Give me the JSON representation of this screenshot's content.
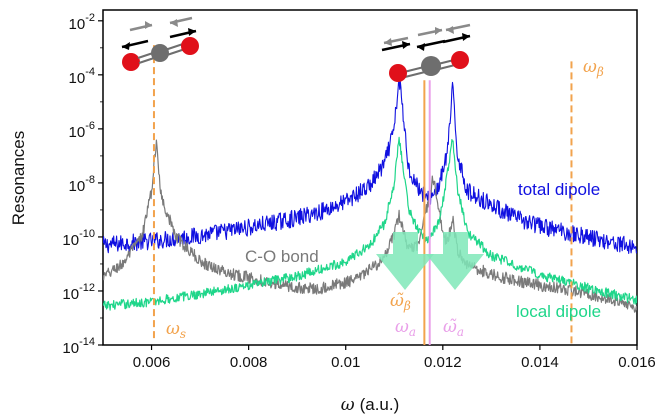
{
  "chart_data": {
    "type": "line",
    "title": "",
    "xlabel_symbol": "ω",
    "xlabel_unit": "(a.u.)",
    "ylabel": "Resonances",
    "yscale": "log",
    "xlim": [
      0.005,
      0.016
    ],
    "ylim_exp": [
      -14,
      -1.6
    ],
    "x_ticks": [
      {
        "value": 0.006,
        "label": "0.006"
      },
      {
        "value": 0.008,
        "label": "0.008"
      },
      {
        "value": 0.01,
        "label": "0.01"
      },
      {
        "value": 0.012,
        "label": "0.012"
      },
      {
        "value": 0.014,
        "label": "0.014"
      },
      {
        "value": 0.016,
        "label": "0.016"
      }
    ],
    "y_ticks": [
      {
        "exp": -2,
        "base": "10",
        "sup": "-2"
      },
      {
        "exp": -4,
        "base": "10",
        "sup": "-4"
      },
      {
        "exp": -6,
        "base": "10",
        "sup": "-6"
      },
      {
        "exp": -8,
        "base": "10",
        "sup": "-8"
      },
      {
        "exp": -10,
        "base": "10",
        "sup": "-10"
      },
      {
        "exp": -12,
        "base": "10",
        "sup": "-12"
      },
      {
        "exp": -14,
        "base": "10",
        "sup": "-14"
      }
    ],
    "series": [
      {
        "name": "total dipole",
        "color": "#1010e0",
        "noise": 0.32,
        "x": [
          0.005,
          0.006,
          0.007,
          0.008,
          0.009,
          0.0095,
          0.01,
          0.0105,
          0.0108,
          0.011,
          0.0111,
          0.0113,
          0.0115,
          0.0117,
          0.0119,
          0.012,
          0.0121,
          0.0122,
          0.0123,
          0.0125,
          0.013,
          0.0135,
          0.014,
          0.015,
          0.016
        ],
        "y_exp": [
          -10.3,
          -10.15,
          -9.95,
          -9.65,
          -9.3,
          -9.05,
          -8.7,
          -8.1,
          -7.3,
          -6.0,
          -4.1,
          -7.5,
          -8.2,
          -8.6,
          -8.2,
          -7.6,
          -6.8,
          -4.5,
          -6.9,
          -8.3,
          -8.8,
          -9.3,
          -9.6,
          -10.0,
          -10.4
        ]
      },
      {
        "name": "C-O bond",
        "color": "#7a7a7a",
        "noise": 0.22,
        "x": [
          0.005,
          0.0054,
          0.0058,
          0.006,
          0.0061,
          0.0062,
          0.0065,
          0.007,
          0.0075,
          0.008,
          0.009,
          0.0095,
          0.0102,
          0.0108,
          0.011,
          0.0111,
          0.0113,
          0.0115,
          0.0117,
          0.0118,
          0.0119,
          0.012,
          0.0121,
          0.0122,
          0.0123,
          0.0125,
          0.013,
          0.014,
          0.015,
          0.016
        ],
        "y_exp": [
          -11.5,
          -11.0,
          -10.0,
          -8.3,
          -6.5,
          -8.5,
          -10.0,
          -10.9,
          -11.3,
          -11.5,
          -11.9,
          -11.9,
          -11.6,
          -10.8,
          -9.9,
          -9.2,
          -10.5,
          -10.3,
          -8.7,
          -7.8,
          -8.8,
          -9.9,
          -10.2,
          -9.3,
          -10.5,
          -11.0,
          -11.4,
          -11.8,
          -12.1,
          -12.6
        ]
      },
      {
        "name": "local dipole",
        "color": "#1fd68a",
        "noise": 0.18,
        "x": [
          0.005,
          0.006,
          0.007,
          0.008,
          0.009,
          0.0095,
          0.01,
          0.0105,
          0.0108,
          0.011,
          0.0111,
          0.0113,
          0.0115,
          0.0117,
          0.0119,
          0.012,
          0.0121,
          0.0122,
          0.0123,
          0.0125,
          0.013,
          0.014,
          0.015,
          0.016
        ],
        "y_exp": [
          -12.55,
          -12.4,
          -12.1,
          -11.8,
          -11.45,
          -11.2,
          -10.9,
          -10.3,
          -9.5,
          -8.0,
          -6.3,
          -9.0,
          -9.8,
          -10.1,
          -9.5,
          -8.7,
          -7.6,
          -6.4,
          -8.2,
          -9.8,
          -10.7,
          -11.4,
          -11.9,
          -12.35
        ]
      }
    ],
    "reference_lines": [
      {
        "name": "omega-s",
        "x": 0.00605,
        "color": "#f2a34d",
        "style": "dashed"
      },
      {
        "name": "omega-beta-tilde",
        "x": 0.01162,
        "color": "#f2a34d",
        "style": "solid"
      },
      {
        "name": "omega-a",
        "x": 0.01173,
        "color": "#e9a0e9",
        "style": "solid"
      },
      {
        "name": "omega-beta",
        "x": 0.01465,
        "color": "#f2a34d",
        "style": "dashed"
      }
    ],
    "annotations": {
      "total_dipole": "total dipole",
      "c_o_bond": "C-O bond",
      "local_dipole": "local dipole",
      "omega_s": {
        "symbol": "ω",
        "sub": "s"
      },
      "omega_beta": {
        "symbol": "ω",
        "sub": "β"
      },
      "omega_beta_tilde": {
        "symbol": "ω̃",
        "sub": "β"
      },
      "omega_a": {
        "symbol": "ω",
        "sub": "a"
      },
      "omega_a_tilde": {
        "symbol": "ω̃",
        "sub": "a"
      }
    },
    "down_arrows_color": "#7fe8b8",
    "molecule_colors": {
      "oxygen": "#e0101a",
      "carbon": "#6e6e6e",
      "arrow_black": "#000000",
      "arrow_gray": "#8a8a8a"
    }
  }
}
